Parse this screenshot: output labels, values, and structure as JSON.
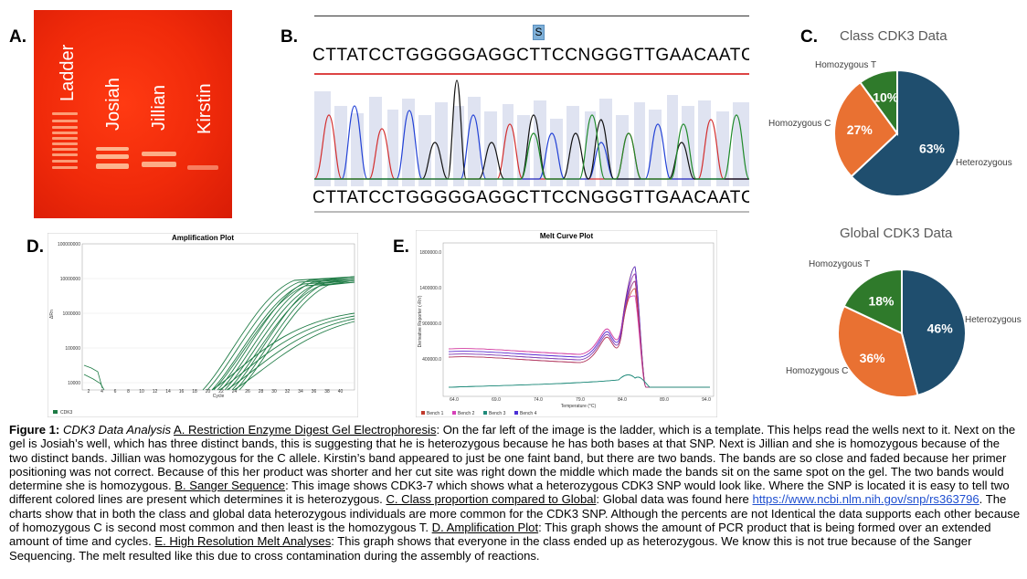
{
  "panels": {
    "a": "A.",
    "b": "B.",
    "c": "C.",
    "d": "D.",
    "e": "E."
  },
  "gel": {
    "lanes": [
      "Ladder",
      "Josiah",
      "Jillian",
      "Kirstin"
    ]
  },
  "sanger": {
    "snp_marker": "S",
    "sequence_top": "CTTATCCTGGGGGAGGCTTCCNGGGTTGAACAATCAGTATA",
    "sequence_bottom": "CTTATCCTGGGGGAGGCTTCCNGGGTTGAACAATCAGTATA"
  },
  "chart_data": [
    {
      "type": "pie",
      "title": "Class CDK3 Data",
      "slices": [
        {
          "name": "Heterozygous",
          "value": 63,
          "label": "63%",
          "color": "#1f4e6e"
        },
        {
          "name": "Homozygous C",
          "value": 27,
          "label": "27%",
          "color": "#e97132"
        },
        {
          "name": "Homozygous T",
          "value": 10,
          "label": "10%",
          "color": "#2f7a2b"
        }
      ]
    },
    {
      "type": "pie",
      "title": "Global CDK3 Data",
      "slices": [
        {
          "name": "Heterozygous",
          "value": 46,
          "label": "46%",
          "color": "#1f4e6e"
        },
        {
          "name": "Homozygous C",
          "value": 36,
          "label": "36%",
          "color": "#e97132"
        },
        {
          "name": "Homozygous T",
          "value": 18,
          "label": "18%",
          "color": "#2f7a2b"
        }
      ]
    },
    {
      "type": "line",
      "title": "Amplification Plot",
      "xlabel": "Cycle",
      "ylabel": "ΔRn",
      "y_ticks": [
        "100000000",
        "10000000",
        "1000000",
        "100000",
        "10000"
      ],
      "x_ticks": [
        "2",
        "4",
        "6",
        "8",
        "10",
        "12",
        "14",
        "16",
        "18",
        "20",
        "22",
        "24",
        "26",
        "28",
        "30",
        "32",
        "34",
        "36",
        "38",
        "40"
      ],
      "legend": [
        "CDK3"
      ],
      "series_color": "#1e7b45"
    },
    {
      "type": "line",
      "title": "Melt Curve Plot",
      "xlabel": "Temperature (°C)",
      "ylabel": "Derivative Reporter (-Rn')",
      "y_ticks": [
        "1800000.0",
        "1400000.0",
        "900000.0",
        "400000.0"
      ],
      "x_ticks": [
        "64.0",
        "69.0",
        "74.0",
        "79.0",
        "84.0",
        "89.0",
        "94.0"
      ],
      "legend": [
        {
          "name": "Bench 1",
          "color": "#c0392b"
        },
        {
          "name": "Bench 2",
          "color": "#d63fb8"
        },
        {
          "name": "Bench 3",
          "color": "#1f8a7a"
        },
        {
          "name": "Bench 4",
          "color": "#4b2fd6"
        }
      ]
    }
  ],
  "caption": {
    "fig_label": "Figure 1:",
    "title_italic": "CDK3 Data Analysis",
    "a_label": "A. Restriction Enzyme Digest Gel Electrophoresis",
    "a_text": ": On the far left of the image is the ladder, which is a template. This helps read the wells next to it. Next on the gel is Josiah’s well, which has three distinct bands, this is suggesting that he is heterozygous because he has both bases at that SNP. Next is Jillian and she is homozygous because of the two distinct bands. Jillian was homozygous for the C allele. Kirstin’s band appeared to just be one faint band, but there are two bands. The bands are so close and faded because her primer positioning was not correct. Because of this her product was shorter and her cut site was right down the middle which made the bands sit on the same spot on the gel. The two bands would determine she is homozygous.",
    "b_label": "B. Sanger Sequence",
    "b_text": ": This image shows CDK3-7 which shows what a heterozygous CDK3 SNP would look like. Where the SNP is located it is easy to tell two different colored lines are present which determines it is heterozygous.",
    "c_label": "C. Class proportion compared to Global",
    "c_text1": ": Global data was found here ",
    "c_link": "https://www.ncbi.nlm.nih.gov/snp/rs363796",
    "c_text2": ". The charts show that in both the class and global data heterozygous individuals are more common for the CDK3 SNP. Although the percents are not Identical the data supports each other because of homozygous C is second most common and then least is the homozygous T.",
    "d_label": "D. Amplification Plot",
    "d_text": ": This graph shows the amount of PCR product that is being formed over an extended amount of time and cycles.",
    "e_label": "E. High Resolution Melt Analyses",
    "e_text": ": This graph shows that everyone in the class ended up as heterozygous. We know this is not true because of the Sanger Sequencing. The melt resulted like this due to cross contamination during the assembly of reactions."
  }
}
